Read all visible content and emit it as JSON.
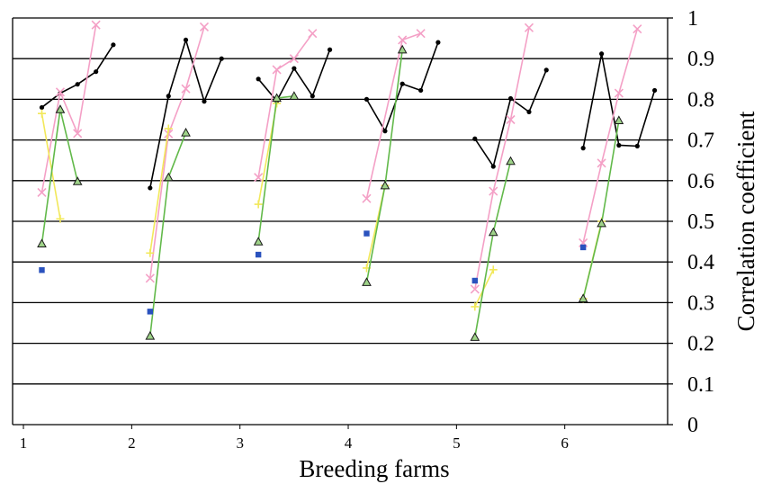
{
  "chart_data": {
    "type": "line",
    "title": "",
    "xlabel": "Breeding farms",
    "ylabel": "Correlation coefficient",
    "x_tick_labels": [
      "1",
      "2",
      "3",
      "4",
      "5",
      "6"
    ],
    "x_range": [
      0.9,
      6.95
    ],
    "ylim": [
      0,
      1
    ],
    "y_ticks": [
      0,
      0.1,
      0.2,
      0.3,
      0.4,
      0.5,
      0.6,
      0.7,
      0.8,
      0.9,
      1
    ],
    "y_tick_labels": [
      "0",
      "0.1",
      "0.2",
      "0.3",
      "0.4",
      "0.5",
      "0.6",
      "0.7",
      "0.8",
      "0.9",
      "1"
    ],
    "grid": "horizontal",
    "legend": "none",
    "series": [
      {
        "color": "#000000",
        "marker": "dot",
        "groups": [
          {
            "x": [
              1.17,
              1.34,
              1.5,
              1.67,
              1.83
            ],
            "y": [
              0.78,
              0.815,
              0.837,
              0.868,
              0.934
            ]
          },
          {
            "x": [
              2.17,
              2.34,
              2.5,
              2.67,
              2.83
            ],
            "y": [
              0.582,
              0.808,
              0.946,
              0.795,
              0.9
            ]
          },
          {
            "x": [
              3.17,
              3.34,
              3.5,
              3.67,
              3.83
            ],
            "y": [
              0.85,
              0.796,
              0.876,
              0.808,
              0.922
            ]
          },
          {
            "x": [
              4.17,
              4.34,
              4.5,
              4.67,
              4.83
            ],
            "y": [
              0.8,
              0.722,
              0.838,
              0.822,
              0.94
            ]
          },
          {
            "x": [
              5.17,
              5.34,
              5.5,
              5.67,
              5.83
            ],
            "y": [
              0.703,
              0.635,
              0.802,
              0.769,
              0.872
            ]
          },
          {
            "x": [
              6.17,
              6.34,
              6.5,
              6.67,
              6.83
            ],
            "y": [
              0.68,
              0.912,
              0.687,
              0.685,
              0.822
            ]
          }
        ]
      },
      {
        "color": "#f4a0c6",
        "marker": "x",
        "groups": [
          {
            "x": [
              1.17,
              1.34,
              1.5,
              1.67
            ],
            "y": [
              0.571,
              0.818,
              0.716,
              0.983
            ]
          },
          {
            "x": [
              2.17,
              2.34,
              2.5,
              2.67
            ],
            "y": [
              0.36,
              0.715,
              0.826,
              0.978
            ]
          },
          {
            "x": [
              3.17,
              3.34,
              3.5,
              3.67
            ],
            "y": [
              0.608,
              0.873,
              0.9,
              0.962
            ]
          },
          {
            "x": [
              4.17,
              4.5,
              4.67
            ],
            "y": [
              0.556,
              0.946,
              0.962
            ]
          },
          {
            "x": [
              5.17,
              5.34,
              5.5,
              5.67
            ],
            "y": [
              0.333,
              0.574,
              0.75,
              0.976
            ]
          },
          {
            "x": [
              6.17,
              6.34,
              6.5,
              6.67
            ],
            "y": [
              0.447,
              0.643,
              0.815,
              0.973
            ]
          }
        ]
      },
      {
        "color": "#f2e85a",
        "marker": "plus",
        "groups": [
          {
            "x": [
              1.17,
              1.34
            ],
            "y": [
              0.765,
              0.506
            ]
          },
          {
            "x": [
              2.17,
              2.34
            ],
            "y": [
              0.422,
              0.728
            ]
          },
          {
            "x": [
              3.17,
              3.34
            ],
            "y": [
              0.542,
              0.79
            ]
          },
          {
            "x": [
              4.17,
              4.34
            ],
            "y": [
              0.385,
              0.588
            ]
          },
          {
            "x": [
              5.17,
              5.34
            ],
            "y": [
              0.29,
              0.381
            ]
          },
          {
            "x": [
              6.17,
              6.34
            ],
            "y": [
              0.31,
              0.5
            ]
          }
        ]
      },
      {
        "color": "#62b94a",
        "marker": "triangle",
        "groups": [
          {
            "x": [
              1.17,
              1.34,
              1.5
            ],
            "y": [
              0.445,
              0.775,
              0.598
            ]
          },
          {
            "x": [
              2.17,
              2.34,
              2.5
            ],
            "y": [
              0.218,
              0.608,
              0.718
            ]
          },
          {
            "x": [
              3.17,
              3.34,
              3.5
            ],
            "y": [
              0.45,
              0.803,
              0.808
            ]
          },
          {
            "x": [
              4.17,
              4.34,
              4.5
            ],
            "y": [
              0.35,
              0.588,
              0.922
            ]
          },
          {
            "x": [
              5.17,
              5.34,
              5.5
            ],
            "y": [
              0.215,
              0.473,
              0.648
            ]
          },
          {
            "x": [
              6.17,
              6.34,
              6.5
            ],
            "y": [
              0.31,
              0.495,
              0.748
            ]
          }
        ]
      },
      {
        "color": "#2a52be",
        "marker": "square",
        "groups": [
          {
            "x": [
              1.17
            ],
            "y": [
              0.38
            ]
          },
          {
            "x": [
              2.17
            ],
            "y": [
              0.278
            ]
          },
          {
            "x": [
              3.17
            ],
            "y": [
              0.418
            ]
          },
          {
            "x": [
              4.17
            ],
            "y": [
              0.47
            ]
          },
          {
            "x": [
              5.17
            ],
            "y": [
              0.354
            ]
          },
          {
            "x": [
              6.17
            ],
            "y": [
              0.436
            ]
          }
        ]
      }
    ]
  }
}
